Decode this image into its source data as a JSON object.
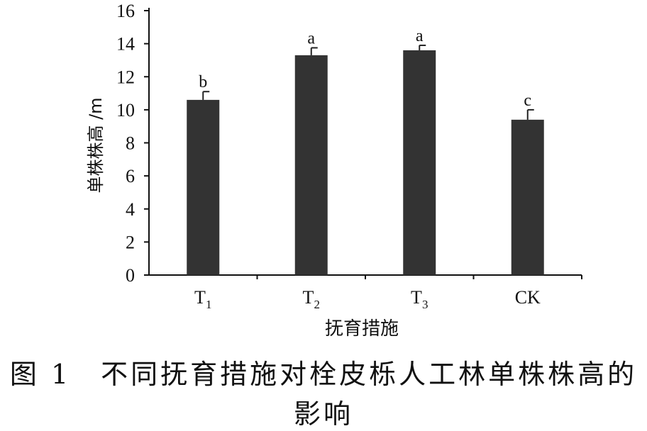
{
  "chart_data": {
    "type": "bar",
    "categories": [
      {
        "base": "T",
        "sub": "1"
      },
      {
        "base": "T",
        "sub": "2"
      },
      {
        "base": "T",
        "sub": "3"
      },
      {
        "base": "CK",
        "sub": ""
      }
    ],
    "values": [
      10.6,
      13.3,
      13.6,
      9.4
    ],
    "errors": [
      0.5,
      0.45,
      0.3,
      0.6
    ],
    "significance": [
      "b",
      "a",
      "a",
      "c"
    ],
    "ylim": [
      0,
      16
    ],
    "yticks": [
      0,
      2,
      4,
      6,
      8,
      10,
      12,
      14,
      16
    ],
    "xlabel": "抚育措施",
    "ylabel": "单株株高 /m",
    "bar_color": "#333333",
    "grid": false,
    "legend": "none"
  },
  "caption": {
    "line1": "图 1　不同抚育措施对栓皮栎人工林单株株高的",
    "line2": "影响"
  }
}
